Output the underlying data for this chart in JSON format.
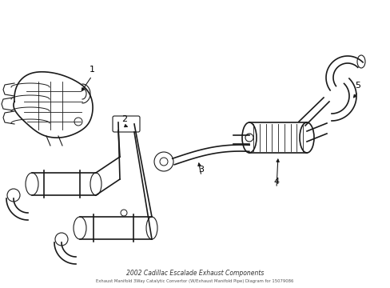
{
  "background_color": "#ffffff",
  "line_color": "#1a1a1a",
  "label_color": "#000000",
  "figsize": [
    4.89,
    3.6
  ],
  "dpi": 100,
  "title": "2002 Cadillac Escalade Exhaust Components",
  "subtitle": "Exhaust Manifold 3Way Catalytic Convertor (W/Exhaust Manifold Pipe) Diagram for 15079086"
}
